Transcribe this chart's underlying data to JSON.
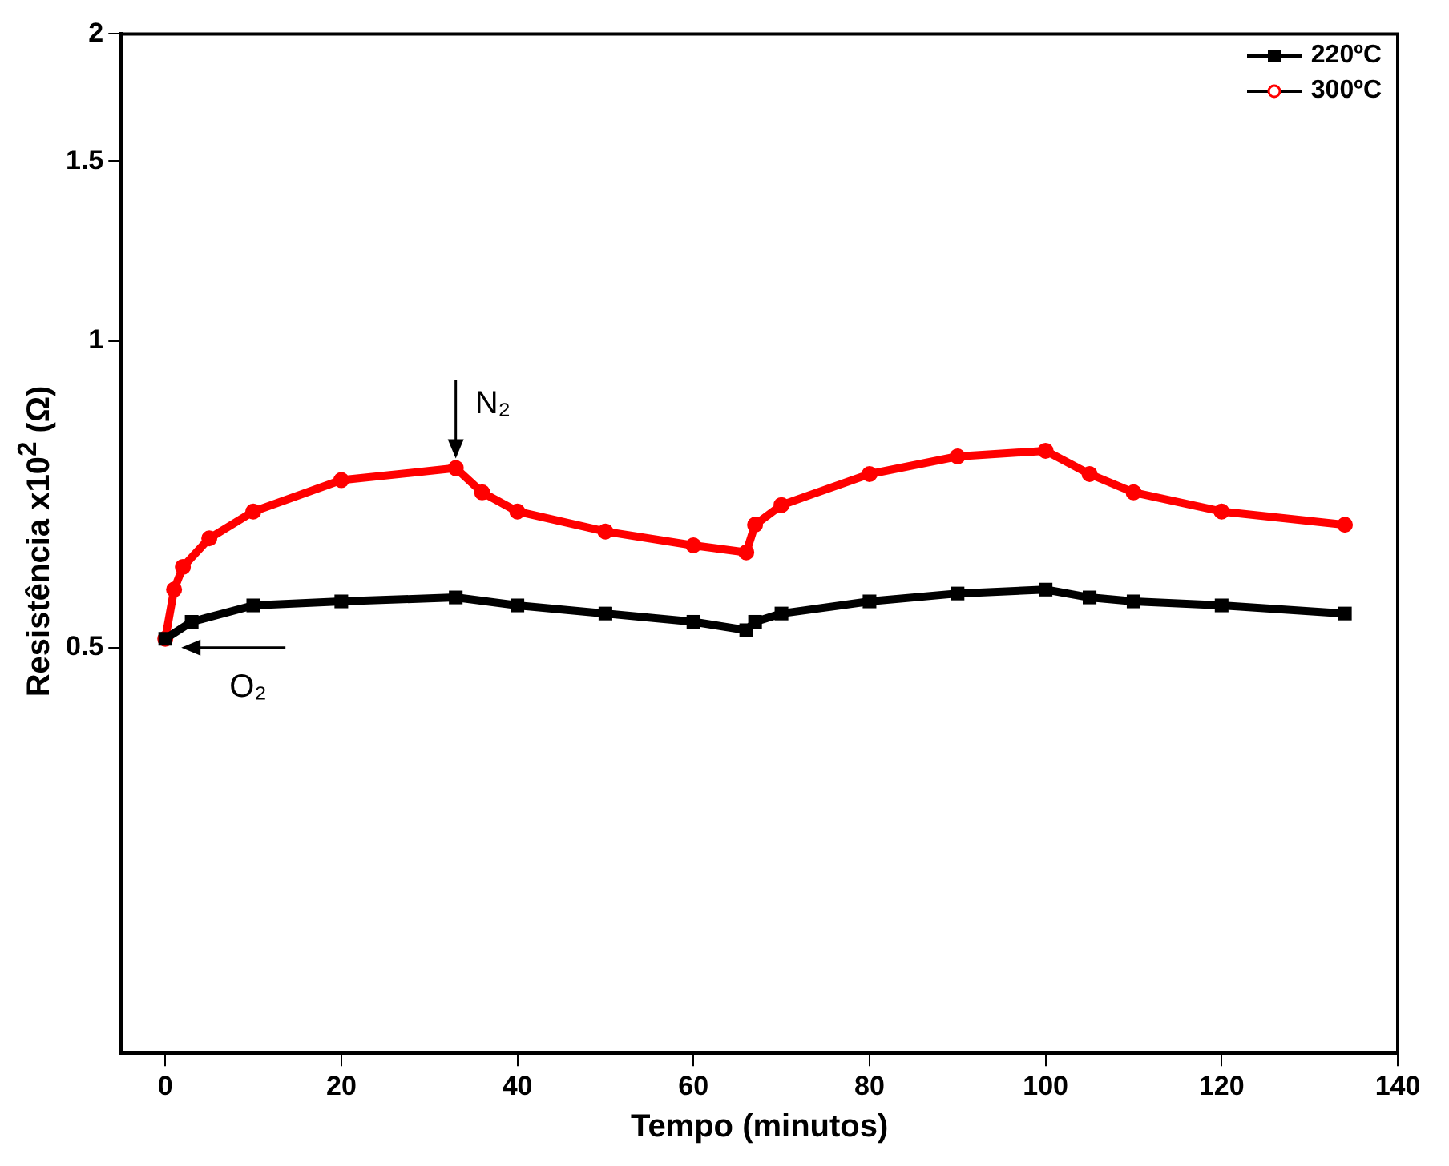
{
  "chart_data": {
    "type": "line",
    "xlabel": "Tempo (minutos)",
    "ylabel": "Resistência x10$^{2}$ (Ω)",
    "log": "y",
    "xlim": [
      -5,
      140
    ],
    "xticks": [
      0,
      20,
      40,
      60,
      80,
      100,
      120,
      140
    ],
    "ylim": [
      0.2,
      2
    ],
    "yticks": [
      0.5,
      1,
      1.5,
      2
    ],
    "legend": "top right",
    "grid": false,
    "series": [
      {
        "name": "220ºC",
        "color": "#000000",
        "marker": "square",
        "x": [
          0,
          3,
          10,
          20,
          33,
          40,
          50,
          60,
          66,
          67,
          70,
          80,
          90,
          100,
          105,
          110,
          120,
          134
        ],
        "values": [
          0.51,
          0.53,
          0.55,
          0.555,
          0.56,
          0.55,
          0.54,
          0.53,
          0.52,
          0.53,
          0.54,
          0.555,
          0.565,
          0.57,
          0.56,
          0.555,
          0.55,
          0.54
        ]
      },
      {
        "name": "300ºC",
        "color": "#ff0000",
        "marker": "circle",
        "x": [
          0,
          1,
          2,
          5,
          10,
          20,
          33,
          36,
          40,
          50,
          60,
          66,
          67,
          70,
          80,
          90,
          100,
          105,
          110,
          120,
          134
        ],
        "values": [
          0.51,
          0.57,
          0.6,
          0.64,
          0.68,
          0.73,
          0.75,
          0.71,
          0.68,
          0.65,
          0.63,
          0.62,
          0.66,
          0.69,
          0.74,
          0.77,
          0.78,
          0.74,
          0.71,
          0.68,
          0.66
        ]
      }
    ],
    "annotations": [
      {
        "text": "N₂",
        "x": 33,
        "y": 0.75
      },
      {
        "text": "O₂",
        "x": 0,
        "y": 0.5
      }
    ]
  }
}
